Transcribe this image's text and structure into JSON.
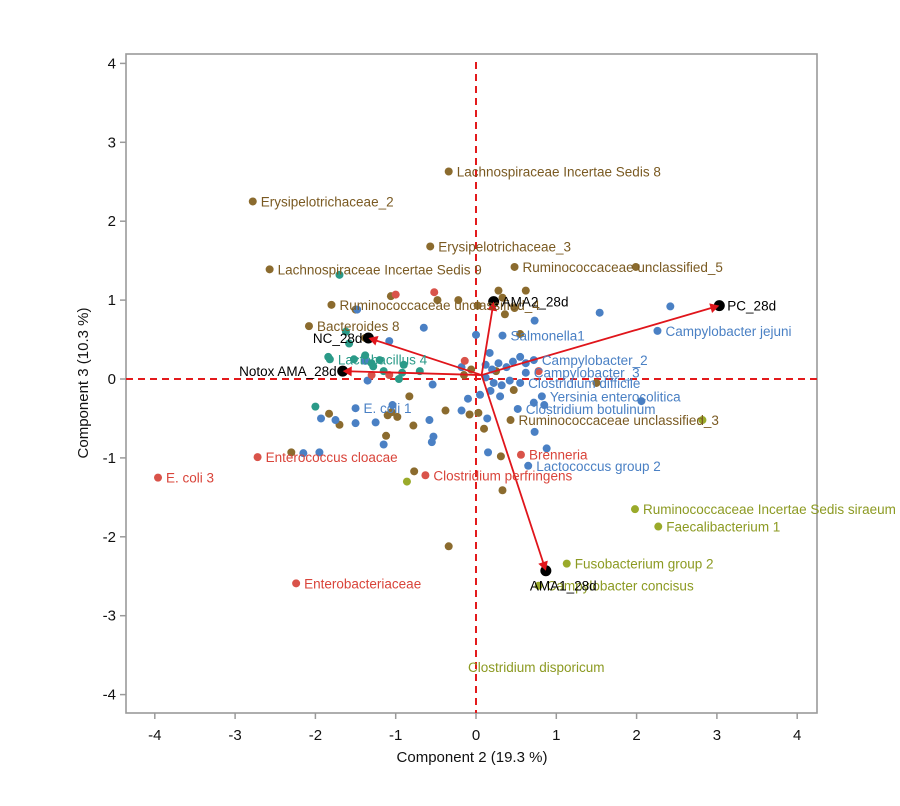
{
  "chart_data": {
    "type": "scatter",
    "subtype": "biplot",
    "title": "",
    "xlabel": "Component 2 (19.3 %)",
    "ylabel": "Component 3 (10.3 %)",
    "xlim": [
      -4.4,
      4.3
    ],
    "ylim": [
      -4.2,
      4.1
    ],
    "xticks": [
      -4,
      -3,
      -2,
      -1,
      0,
      1,
      2,
      3,
      4
    ],
    "yticks": [
      -4,
      -3,
      -2,
      -1,
      0,
      1,
      2,
      3,
      4
    ],
    "grid": false,
    "reference_lines": {
      "x": 0,
      "y": 0,
      "style": "dashed",
      "color": "#e31a1c"
    },
    "groups": {
      "brown": "#8b6b2e",
      "blue": "#4a80c4",
      "red": "#d9534a",
      "teal": "#2a9a88",
      "olive": "#9aaa2a"
    },
    "vector_origin": [
      0.07,
      0.05
    ],
    "vectors": [
      {
        "name": "PC_28d",
        "x": 3.03,
        "y": 0.93
      },
      {
        "name": "AMA2_28d",
        "x": 0.22,
        "y": 0.98
      },
      {
        "name": "NC_28d",
        "x": -1.34,
        "y": 0.52
      },
      {
        "name": "Notox AMA_28d",
        "x": -1.66,
        "y": 0.1
      },
      {
        "name": "AMA1_28d",
        "x": 0.87,
        "y": -2.43
      }
    ],
    "labeled_points": [
      {
        "label": "Lachnospiraceae Incertae Sedis 8",
        "group": "brown",
        "x": -0.34,
        "y": 2.63
      },
      {
        "label": "Erysipelotrichaceae_2",
        "group": "brown",
        "x": -2.78,
        "y": 2.25
      },
      {
        "label": "Erysipelotrichaceae_3",
        "group": "brown",
        "x": -0.57,
        "y": 1.68
      },
      {
        "label": "Lachnospiraceae Incertae Sedis 9",
        "group": "brown",
        "x": -2.57,
        "y": 1.39
      },
      {
        "label": "Ruminococcaceae unclassified_5",
        "group": "brown",
        "x": 0.48,
        "y": 1.42
      },
      {
        "label": "Ruminococcaceae unclassified_4",
        "group": "brown",
        "x": -1.8,
        "y": 0.94
      },
      {
        "label": "Bacteroides 8",
        "group": "brown",
        "x": -2.08,
        "y": 0.67
      },
      {
        "label": "Ruminococcaceae unclassified_3",
        "group": "brown",
        "x": 0.43,
        "y": -0.52
      },
      {
        "label": "Salmonella1",
        "group": "blue",
        "x": 0.33,
        "y": 0.55
      },
      {
        "label": "Campylobacter jejuni",
        "group": "blue",
        "x": 2.26,
        "y": 0.61
      },
      {
        "label": "Campylobacter_2",
        "group": "blue",
        "x": 0.72,
        "y": 0.24
      },
      {
        "label": "Campylobacter_3",
        "group": "blue",
        "x": 0.62,
        "y": 0.08
      },
      {
        "label": "Clostridium difficile",
        "group": "blue",
        "x": 0.55,
        "y": -0.05
      },
      {
        "label": "Yersinia enterocolitica",
        "group": "blue",
        "x": 0.82,
        "y": -0.22
      },
      {
        "label": "Clostridium botulinum",
        "group": "blue",
        "x": 0.52,
        "y": -0.38
      },
      {
        "label": "E. coli 1",
        "group": "blue",
        "x": -1.5,
        "y": -0.37
      },
      {
        "label": "Lactococcus group 2",
        "group": "blue",
        "x": 0.65,
        "y": -1.1
      },
      {
        "label": "Lactobacillus 4",
        "group": "teal",
        "x": -1.82,
        "y": 0.25
      },
      {
        "label": "Enterococcus cloacae",
        "group": "red",
        "x": -2.72,
        "y": -0.99
      },
      {
        "label": "E. coli 3",
        "group": "red",
        "x": -3.96,
        "y": -1.25
      },
      {
        "label": "Clostridium perfringens",
        "group": "red",
        "x": -0.63,
        "y": -1.22
      },
      {
        "label": "Enterobacteriaceae",
        "group": "red",
        "x": -2.24,
        "y": -2.59
      },
      {
        "label": "Brenneria",
        "group": "red",
        "x": 0.56,
        "y": -0.96
      },
      {
        "label": "Ruminococcaceae Incertae Sedis siraeum",
        "group": "olive",
        "x": 1.98,
        "y": -1.65
      },
      {
        "label": "Faecalibacterium 1",
        "group": "olive",
        "x": 2.27,
        "y": -1.87
      },
      {
        "label": "Fusobacterium group 2",
        "group": "olive",
        "x": 1.13,
        "y": -2.34
      },
      {
        "label": "Campylobacter concisus",
        "group": "olive",
        "x": 0.78,
        "y": -2.62
      },
      {
        "label": "Clostridium disporicum",
        "group": "olive",
        "x": null,
        "y": null,
        "label_only": true,
        "label_x": -0.1,
        "label_y": -3.65
      }
    ],
    "points": [
      {
        "group": "brown",
        "x": -1.06,
        "y": 1.05
      },
      {
        "group": "brown",
        "x": -0.22,
        "y": 1.0
      },
      {
        "group": "brown",
        "x": -0.48,
        "y": 1.0
      },
      {
        "group": "brown",
        "x": 0.02,
        "y": 0.93
      },
      {
        "group": "brown",
        "x": 0.33,
        "y": 1.03
      },
      {
        "group": "brown",
        "x": 0.28,
        "y": 1.12
      },
      {
        "group": "brown",
        "x": 0.62,
        "y": 1.12
      },
      {
        "group": "brown",
        "x": 1.99,
        "y": 1.42
      },
      {
        "group": "brown",
        "x": 0.48,
        "y": 0.9
      },
      {
        "group": "brown",
        "x": 0.36,
        "y": 0.82
      },
      {
        "group": "brown",
        "x": 0.55,
        "y": 0.57
      },
      {
        "group": "brown",
        "x": -0.06,
        "y": 0.12
      },
      {
        "group": "brown",
        "x": -0.38,
        "y": -0.4
      },
      {
        "group": "brown",
        "x": -0.08,
        "y": -0.45
      },
      {
        "group": "brown",
        "x": 0.03,
        "y": -0.43
      },
      {
        "group": "brown",
        "x": 0.1,
        "y": -0.63
      },
      {
        "group": "brown",
        "x": -0.15,
        "y": 0.05
      },
      {
        "group": "brown",
        "x": 0.47,
        "y": -0.14
      },
      {
        "group": "brown",
        "x": 1.5,
        "y": -0.05
      },
      {
        "group": "brown",
        "x": 0.25,
        "y": 0.1
      },
      {
        "group": "brown",
        "x": 0.31,
        "y": -0.98
      },
      {
        "group": "brown",
        "x": 0.33,
        "y": -1.41
      },
      {
        "group": "brown",
        "x": -0.34,
        "y": -2.12
      },
      {
        "group": "brown",
        "x": -0.77,
        "y": -1.17
      },
      {
        "group": "brown",
        "x": -1.83,
        "y": -0.44
      },
      {
        "group": "brown",
        "x": -1.7,
        "y": -0.58
      },
      {
        "group": "brown",
        "x": -1.1,
        "y": -0.46
      },
      {
        "group": "brown",
        "x": -1.05,
        "y": -0.42
      },
      {
        "group": "brown",
        "x": -0.98,
        "y": -0.48
      },
      {
        "group": "brown",
        "x": -1.12,
        "y": -0.72
      },
      {
        "group": "brown",
        "x": -0.78,
        "y": -0.59
      },
      {
        "group": "brown",
        "x": -2.3,
        "y": -0.93
      },
      {
        "group": "brown",
        "x": -1.5,
        "y": 0.88
      },
      {
        "group": "brown",
        "x": -1.38,
        "y": 0.52
      },
      {
        "group": "brown",
        "x": -0.83,
        "y": -0.22
      },
      {
        "group": "blue",
        "x": 2.42,
        "y": 0.92
      },
      {
        "group": "blue",
        "x": 1.54,
        "y": 0.84
      },
      {
        "group": "blue",
        "x": 0.73,
        "y": 0.74
      },
      {
        "group": "blue",
        "x": 0.0,
        "y": 0.56
      },
      {
        "group": "blue",
        "x": 0.17,
        "y": 0.33
      },
      {
        "group": "blue",
        "x": -0.18,
        "y": 0.15
      },
      {
        "group": "blue",
        "x": 0.12,
        "y": 0.18
      },
      {
        "group": "blue",
        "x": 0.2,
        "y": 0.12
      },
      {
        "group": "blue",
        "x": 0.28,
        "y": 0.2
      },
      {
        "group": "blue",
        "x": 0.38,
        "y": 0.15
      },
      {
        "group": "blue",
        "x": 0.46,
        "y": 0.22
      },
      {
        "group": "blue",
        "x": 0.55,
        "y": 0.28
      },
      {
        "group": "blue",
        "x": 0.62,
        "y": 0.2
      },
      {
        "group": "blue",
        "x": 0.12,
        "y": 0.02
      },
      {
        "group": "blue",
        "x": 0.22,
        "y": -0.05
      },
      {
        "group": "blue",
        "x": 0.32,
        "y": -0.08
      },
      {
        "group": "blue",
        "x": 0.42,
        "y": -0.02
      },
      {
        "group": "blue",
        "x": 0.18,
        "y": -0.15
      },
      {
        "group": "blue",
        "x": 0.3,
        "y": -0.22
      },
      {
        "group": "blue",
        "x": 0.05,
        "y": -0.2
      },
      {
        "group": "blue",
        "x": -0.1,
        "y": -0.25
      },
      {
        "group": "blue",
        "x": 0.85,
        "y": -0.33
      },
      {
        "group": "blue",
        "x": 0.72,
        "y": -0.3
      },
      {
        "group": "blue",
        "x": 2.06,
        "y": -0.28
      },
      {
        "group": "blue",
        "x": 0.14,
        "y": -0.5
      },
      {
        "group": "blue",
        "x": 0.73,
        "y": -0.67
      },
      {
        "group": "blue",
        "x": 0.88,
        "y": -0.88
      },
      {
        "group": "blue",
        "x": 0.15,
        "y": -0.93
      },
      {
        "group": "blue",
        "x": -0.54,
        "y": -0.07
      },
      {
        "group": "blue",
        "x": -1.35,
        "y": -0.02
      },
      {
        "group": "blue",
        "x": -1.93,
        "y": -0.5
      },
      {
        "group": "blue",
        "x": -2.15,
        "y": -0.94
      },
      {
        "group": "blue",
        "x": -1.95,
        "y": -0.93
      },
      {
        "group": "blue",
        "x": -1.75,
        "y": -0.52
      },
      {
        "group": "blue",
        "x": -1.5,
        "y": -0.56
      },
      {
        "group": "blue",
        "x": -1.25,
        "y": -0.55
      },
      {
        "group": "blue",
        "x": -1.04,
        "y": -0.33
      },
      {
        "group": "blue",
        "x": -0.58,
        "y": -0.52
      },
      {
        "group": "blue",
        "x": -0.53,
        "y": -0.73
      },
      {
        "group": "blue",
        "x": -0.55,
        "y": -0.8
      },
      {
        "group": "blue",
        "x": -1.15,
        "y": -0.83
      },
      {
        "group": "blue",
        "x": -0.18,
        "y": -0.4
      },
      {
        "group": "blue",
        "x": -1.38,
        "y": 0.23
      },
      {
        "group": "blue",
        "x": -1.48,
        "y": 0.88
      },
      {
        "group": "blue",
        "x": -1.08,
        "y": 0.48
      },
      {
        "group": "blue",
        "x": -0.65,
        "y": 0.65
      },
      {
        "group": "teal",
        "x": -1.7,
        "y": 1.32
      },
      {
        "group": "teal",
        "x": -1.62,
        "y": 0.6
      },
      {
        "group": "teal",
        "x": -1.58,
        "y": 0.45
      },
      {
        "group": "teal",
        "x": -1.52,
        "y": 0.25
      },
      {
        "group": "teal",
        "x": -1.38,
        "y": 0.3
      },
      {
        "group": "teal",
        "x": -1.3,
        "y": 0.2
      },
      {
        "group": "teal",
        "x": -1.28,
        "y": 0.16
      },
      {
        "group": "teal",
        "x": -1.2,
        "y": 0.24
      },
      {
        "group": "teal",
        "x": -1.15,
        "y": 0.1
      },
      {
        "group": "teal",
        "x": -0.9,
        "y": 0.18
      },
      {
        "group": "teal",
        "x": -0.92,
        "y": 0.08
      },
      {
        "group": "teal",
        "x": -0.96,
        "y": 0.0
      },
      {
        "group": "teal",
        "x": -0.7,
        "y": 0.1
      },
      {
        "group": "teal",
        "x": -1.84,
        "y": 0.28
      },
      {
        "group": "teal",
        "x": -2.0,
        "y": -0.35
      },
      {
        "group": "red",
        "x": -1.0,
        "y": 1.07
      },
      {
        "group": "red",
        "x": -0.52,
        "y": 1.1
      },
      {
        "group": "red",
        "x": -0.14,
        "y": 0.23
      },
      {
        "group": "red",
        "x": 0.78,
        "y": 0.1
      },
      {
        "group": "red",
        "x": -1.08,
        "y": 0.05
      },
      {
        "group": "red",
        "x": -1.3,
        "y": 0.05
      },
      {
        "group": "olive",
        "x": -0.86,
        "y": -1.3
      },
      {
        "group": "olive",
        "x": 2.82,
        "y": -0.52
      }
    ]
  }
}
